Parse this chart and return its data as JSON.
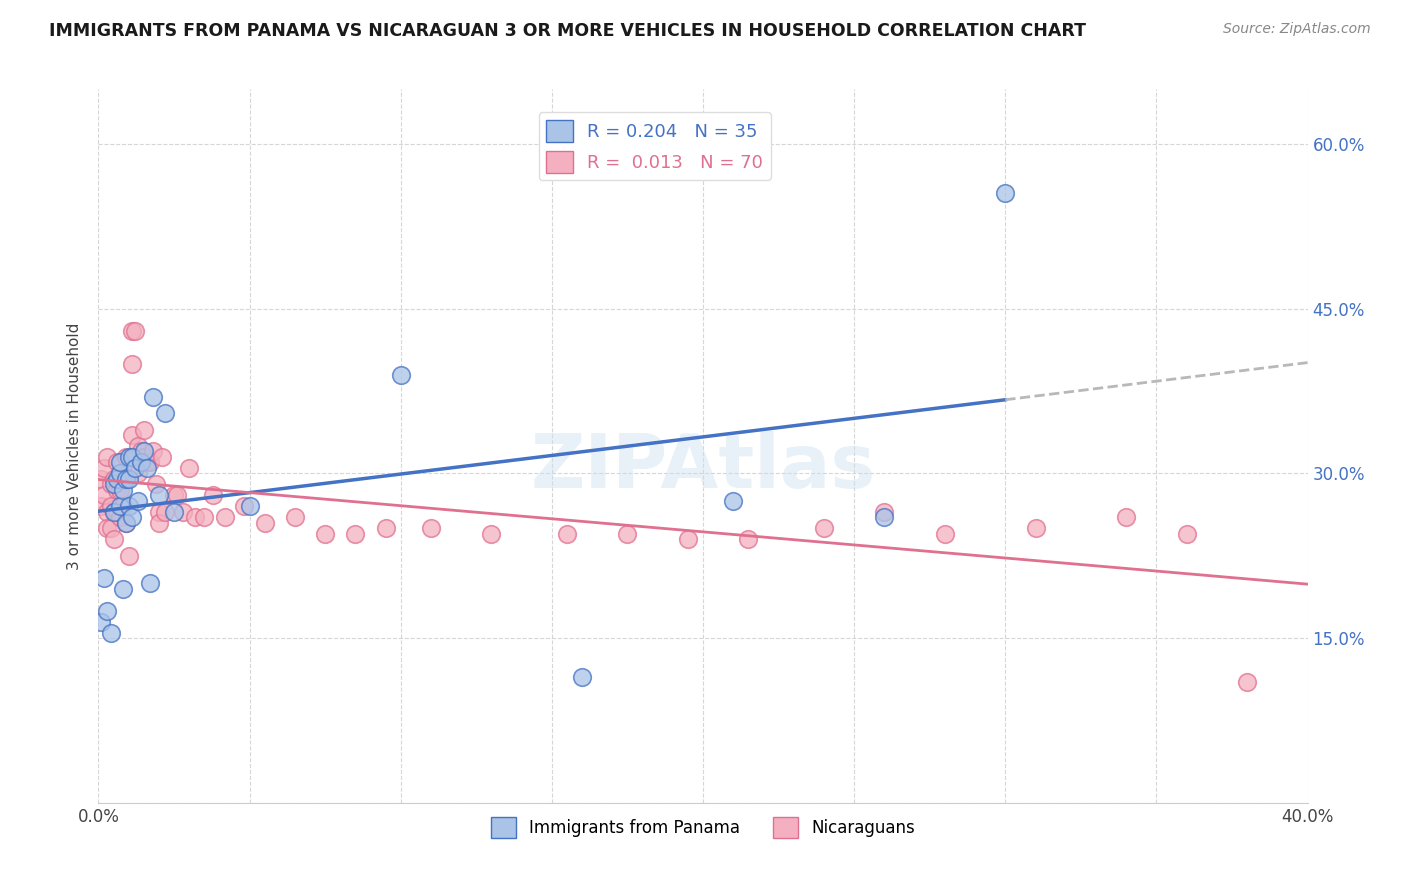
{
  "title": "IMMIGRANTS FROM PANAMA VS NICARAGUAN 3 OR MORE VEHICLES IN HOUSEHOLD CORRELATION CHART",
  "source": "Source: ZipAtlas.com",
  "ylabel": "3 or more Vehicles in Household",
  "legend1_label": "R = 0.204   N = 35",
  "legend2_label": "R =  0.013   N = 70",
  "legend_bottom1": "Immigrants from Panama",
  "legend_bottom2": "Nicaraguans",
  "panama_color": "#aac4e8",
  "nicaraguan_color": "#f4b0c0",
  "panama_line_color": "#4472c4",
  "nicaraguan_line_color": "#e07090",
  "trendline_extend_color": "#b8b8b8",
  "watermark": "ZIPAtlas",
  "panama_x": [
    0.001,
    0.002,
    0.003,
    0.004,
    0.005,
    0.005,
    0.006,
    0.007,
    0.007,
    0.007,
    0.008,
    0.008,
    0.009,
    0.009,
    0.01,
    0.01,
    0.01,
    0.011,
    0.011,
    0.012,
    0.013,
    0.014,
    0.015,
    0.016,
    0.017,
    0.018,
    0.02,
    0.022,
    0.025,
    0.05,
    0.1,
    0.16,
    0.21,
    0.26,
    0.3
  ],
  "panama_y": [
    0.165,
    0.205,
    0.175,
    0.155,
    0.265,
    0.29,
    0.295,
    0.27,
    0.3,
    0.31,
    0.285,
    0.195,
    0.295,
    0.255,
    0.315,
    0.295,
    0.27,
    0.315,
    0.26,
    0.305,
    0.275,
    0.31,
    0.32,
    0.305,
    0.2,
    0.37,
    0.28,
    0.355,
    0.265,
    0.27,
    0.39,
    0.115,
    0.275,
    0.26,
    0.555
  ],
  "nicaraguan_x": [
    0.001,
    0.001,
    0.002,
    0.002,
    0.003,
    0.003,
    0.003,
    0.004,
    0.004,
    0.004,
    0.005,
    0.005,
    0.005,
    0.006,
    0.006,
    0.006,
    0.007,
    0.007,
    0.007,
    0.008,
    0.008,
    0.009,
    0.009,
    0.01,
    0.01,
    0.011,
    0.011,
    0.011,
    0.012,
    0.012,
    0.013,
    0.013,
    0.014,
    0.015,
    0.015,
    0.016,
    0.017,
    0.018,
    0.019,
    0.02,
    0.02,
    0.021,
    0.022,
    0.025,
    0.026,
    0.028,
    0.03,
    0.032,
    0.035,
    0.038,
    0.042,
    0.048,
    0.055,
    0.065,
    0.075,
    0.085,
    0.095,
    0.11,
    0.13,
    0.155,
    0.175,
    0.195,
    0.215,
    0.24,
    0.26,
    0.28,
    0.31,
    0.34,
    0.36,
    0.38
  ],
  "nicaraguan_y": [
    0.27,
    0.295,
    0.305,
    0.28,
    0.315,
    0.265,
    0.25,
    0.29,
    0.27,
    0.25,
    0.295,
    0.265,
    0.24,
    0.31,
    0.285,
    0.265,
    0.3,
    0.285,
    0.26,
    0.295,
    0.27,
    0.315,
    0.255,
    0.3,
    0.225,
    0.43,
    0.4,
    0.335,
    0.315,
    0.43,
    0.325,
    0.3,
    0.32,
    0.34,
    0.315,
    0.31,
    0.31,
    0.32,
    0.29,
    0.265,
    0.255,
    0.315,
    0.265,
    0.28,
    0.28,
    0.265,
    0.305,
    0.26,
    0.26,
    0.28,
    0.26,
    0.27,
    0.255,
    0.26,
    0.245,
    0.245,
    0.25,
    0.25,
    0.245,
    0.245,
    0.245,
    0.24,
    0.24,
    0.25,
    0.265,
    0.245,
    0.25,
    0.26,
    0.245,
    0.11
  ],
  "xlim": [
    0.0,
    0.4
  ],
  "ylim": [
    0.0,
    0.65
  ],
  "xticks": [
    0.0,
    0.05,
    0.1,
    0.15,
    0.2,
    0.25,
    0.3,
    0.35,
    0.4
  ],
  "yticks": [
    0.0,
    0.15,
    0.3,
    0.45,
    0.6
  ],
  "ytick_labels_right": [
    "",
    "15.0%",
    "30.0%",
    "45.0%",
    "60.0%"
  ],
  "xtick_labels": [
    "0.0%",
    "",
    "",
    "",
    "",
    "",
    "",
    "",
    "40.0%"
  ],
  "bg_color": "#ffffff",
  "grid_color": "#cccccc"
}
